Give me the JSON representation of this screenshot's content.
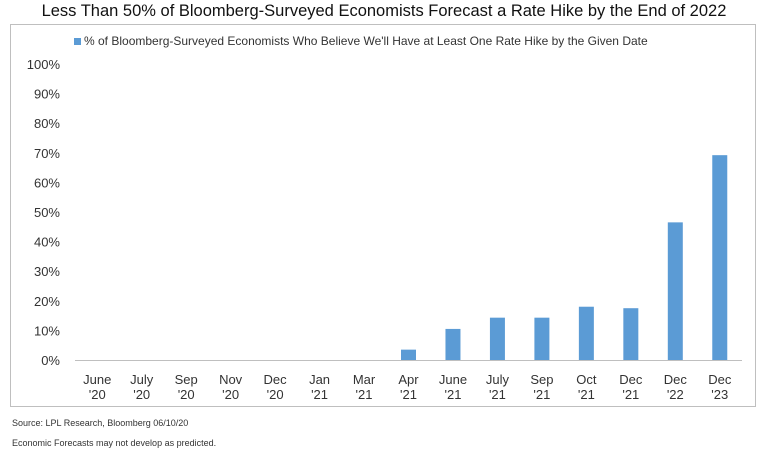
{
  "chart_data": {
    "type": "bar",
    "title": "Less Than 50% of Bloomberg-Surveyed Economists Forecast a Rate Hike by the End of 2022",
    "legend": "% of Bloomberg-Surveyed Economists Who Believe We'll Have at Least One Rate Hike by the Given Date",
    "legend_position": "top",
    "color": "#5b9bd5",
    "categories": [
      [
        "June",
        "'20"
      ],
      [
        "July",
        "'20"
      ],
      [
        "Sep",
        "'20"
      ],
      [
        "Nov",
        "'20"
      ],
      [
        "Dec",
        "'20"
      ],
      [
        "Jan",
        "'21"
      ],
      [
        "Mar",
        "'21"
      ],
      [
        "Apr",
        "'21"
      ],
      [
        "June",
        "'21"
      ],
      [
        "July",
        "'21"
      ],
      [
        "Sep",
        "'21"
      ],
      [
        "Oct",
        "'21"
      ],
      [
        "Dec",
        "'21"
      ],
      [
        "Dec",
        "'22"
      ],
      [
        "Dec",
        "'23"
      ]
    ],
    "values": [
      0,
      0,
      0,
      0,
      0,
      0,
      0,
      3.5,
      10.5,
      14.3,
      14.3,
      18.0,
      17.5,
      46.5,
      69.2
    ],
    "ylim": [
      0,
      100
    ],
    "yticks": [
      "0%",
      "10%",
      "20%",
      "30%",
      "40%",
      "50%",
      "60%",
      "70%",
      "80%",
      "90%",
      "100%"
    ],
    "grid": false
  },
  "footer": {
    "source": "Source: LPL Research, Bloomberg 06/10/20",
    "disclaimer": "Economic Forecasts may not develop as predicted."
  }
}
